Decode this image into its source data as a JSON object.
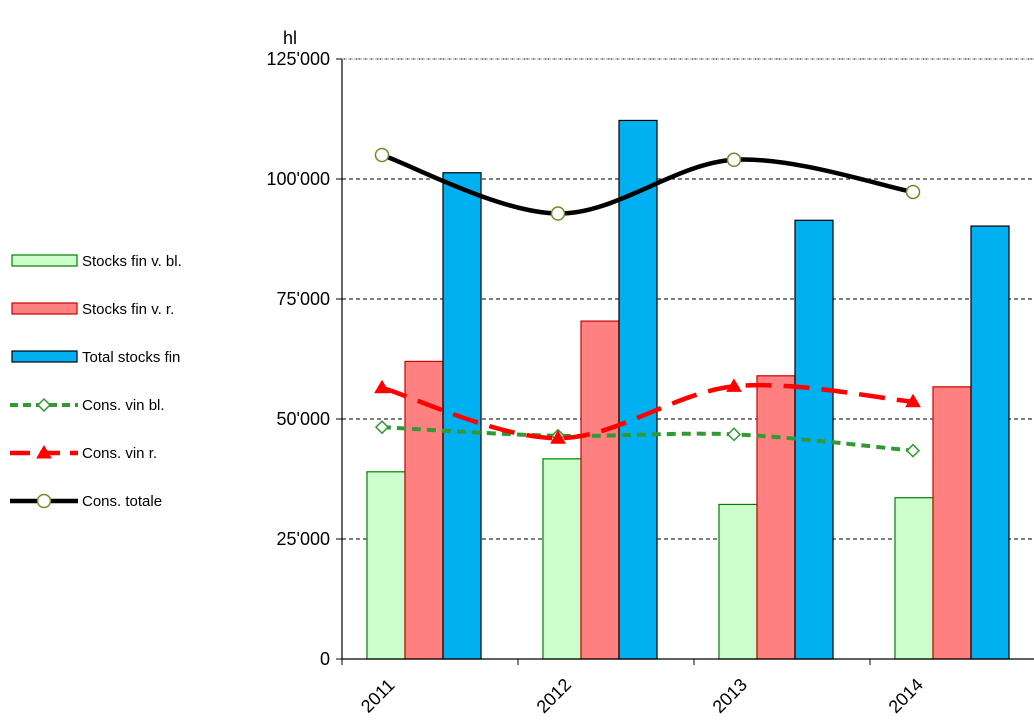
{
  "chart_data": {
    "type": "bar",
    "ylabel": "hl",
    "categories": [
      "2011",
      "2012",
      "2013",
      "2014"
    ],
    "ylim": [
      0,
      125000
    ],
    "yticks": [
      0,
      25000,
      50000,
      75000,
      100000,
      125000
    ],
    "ytick_labels": [
      "0",
      "25'000",
      "50'000",
      "75'000",
      "100'000",
      "125'000"
    ],
    "grid": "horizontal dashed",
    "legend_position": "left",
    "bar_series": [
      {
        "name": "Stocks fin v. bl.",
        "values": [
          39000,
          41700,
          32200,
          33600
        ],
        "fill": "#ccffcc",
        "stroke": "#008000"
      },
      {
        "name": "Stocks fin v. r.",
        "values": [
          62000,
          70400,
          59000,
          56700
        ],
        "fill": "#ff8080",
        "stroke": "#cc0000"
      },
      {
        "name": "Total stocks fin",
        "values": [
          101300,
          112200,
          91400,
          90200
        ],
        "fill": "#00b0f0",
        "stroke": "#000000"
      }
    ],
    "line_series": [
      {
        "name": "Cons. vin bl.",
        "values": [
          48300,
          46500,
          46800,
          43400
        ],
        "color": "#339933",
        "marker": "diamond",
        "style": "dotted"
      },
      {
        "name": "Cons. vin r.",
        "values": [
          56500,
          46000,
          56800,
          53600
        ],
        "color": "#ff0000",
        "marker": "triangle",
        "style": "dashed"
      },
      {
        "name": "Cons. totale",
        "values": [
          105000,
          92800,
          104000,
          97300
        ],
        "color": "#000000",
        "marker": "circle",
        "style": "solid"
      }
    ]
  }
}
